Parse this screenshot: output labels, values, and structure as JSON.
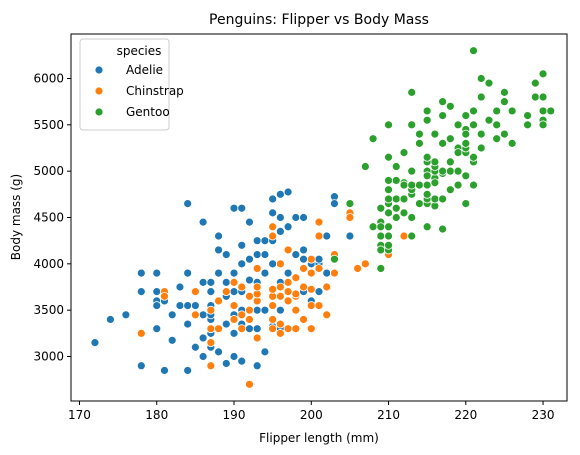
{
  "chart_data": {
    "type": "scatter",
    "title": "Penguins: Flipper vs Body Mass",
    "xlabel": "Flipper length (mm)",
    "ylabel": "Body mass (g)",
    "xlim": [
      168.9,
      233.1
    ],
    "ylim": [
      2520,
      6480
    ],
    "x_ticks": [
      170,
      180,
      190,
      200,
      210,
      220,
      230
    ],
    "y_ticks": [
      3000,
      3500,
      4000,
      4500,
      5000,
      5500,
      6000
    ],
    "grid": false,
    "legend": {
      "title": "species",
      "placement": "top-left"
    },
    "series": [
      {
        "name": "Adelie",
        "color": "#1f77b4",
        "points": [
          [
            172,
            3150
          ],
          [
            174,
            3400
          ],
          [
            176,
            3450
          ],
          [
            178,
            2900
          ],
          [
            178,
            3900
          ],
          [
            178,
            3700
          ],
          [
            180,
            3600
          ],
          [
            180,
            3550
          ],
          [
            180,
            3900
          ],
          [
            180,
            3700
          ],
          [
            180,
            3300
          ],
          [
            181,
            2850
          ],
          [
            181,
            3600
          ],
          [
            182,
            3175
          ],
          [
            182,
            3450
          ],
          [
            183,
            3550
          ],
          [
            183,
            3750
          ],
          [
            184,
            2850
          ],
          [
            184,
            3550
          ],
          [
            184,
            3350
          ],
          [
            184,
            4650
          ],
          [
            184,
            3900
          ],
          [
            185,
            3100
          ],
          [
            185,
            3700
          ],
          [
            185,
            3550
          ],
          [
            186,
            3000
          ],
          [
            186,
            3800
          ],
          [
            186,
            4450
          ],
          [
            186,
            3450
          ],
          [
            186,
            3200
          ],
          [
            187,
            2900
          ],
          [
            187,
            3100
          ],
          [
            187,
            3400
          ],
          [
            187,
            3800
          ],
          [
            187,
            3550
          ],
          [
            187,
            3450
          ],
          [
            187,
            3700
          ],
          [
            187,
            3250
          ],
          [
            188,
            3050
          ],
          [
            188,
            3300
          ],
          [
            188,
            3600
          ],
          [
            188,
            3900
          ],
          [
            188,
            4300
          ],
          [
            188,
            4150
          ],
          [
            189,
            2925
          ],
          [
            189,
            3350
          ],
          [
            189,
            3650
          ],
          [
            189,
            4100
          ],
          [
            189,
            3800
          ],
          [
            190,
            3000
          ],
          [
            190,
            3250
          ],
          [
            190,
            3450
          ],
          [
            190,
            3700
          ],
          [
            190,
            3900
          ],
          [
            190,
            4600
          ],
          [
            190,
            3550
          ],
          [
            191,
            2950
          ],
          [
            191,
            3350
          ],
          [
            191,
            3700
          ],
          [
            191,
            4000
          ],
          [
            191,
            4200
          ],
          [
            191,
            4600
          ],
          [
            191,
            3500
          ],
          [
            192,
            3300
          ],
          [
            192,
            3650
          ],
          [
            192,
            3825
          ],
          [
            192,
            4450
          ],
          [
            192,
            4050
          ],
          [
            193,
            2900
          ],
          [
            193,
            3300
          ],
          [
            193,
            3500
          ],
          [
            193,
            3800
          ],
          [
            193,
            4100
          ],
          [
            193,
            4250
          ],
          [
            194,
            3050
          ],
          [
            194,
            3500
          ],
          [
            194,
            3900
          ],
          [
            194,
            4250
          ],
          [
            194,
            4100
          ],
          [
            195,
            3325
          ],
          [
            195,
            3550
          ],
          [
            195,
            4000
          ],
          [
            195,
            4250
          ],
          [
            195,
            4550
          ],
          [
            195,
            4700
          ],
          [
            196,
            3300
          ],
          [
            196,
            3500
          ],
          [
            196,
            3800
          ],
          [
            196,
            4000
          ],
          [
            196,
            4350
          ],
          [
            196,
            4500
          ],
          [
            196,
            4750
          ],
          [
            197,
            3300
          ],
          [
            197,
            4400
          ],
          [
            197,
            4775
          ],
          [
            197,
            3900
          ],
          [
            198,
            3500
          ],
          [
            198,
            4100
          ],
          [
            198,
            4500
          ],
          [
            199,
            3700
          ],
          [
            199,
            4050
          ],
          [
            199,
            4150
          ],
          [
            199,
            4500
          ],
          [
            200,
            3600
          ],
          [
            200,
            3900
          ],
          [
            200,
            4000
          ],
          [
            201,
            3700
          ],
          [
            201,
            4000
          ],
          [
            201,
            4050
          ],
          [
            202,
            4300
          ],
          [
            202,
            3900
          ],
          [
            203,
            4725
          ],
          [
            203,
            4650
          ],
          [
            205,
            4300
          ]
        ]
      },
      {
        "name": "Chinstrap",
        "color": "#ff7f0e",
        "points": [
          [
            178,
            3250
          ],
          [
            181,
            3700
          ],
          [
            181,
            3650
          ],
          [
            185,
            3700
          ],
          [
            185,
            3450
          ],
          [
            187,
            2900
          ],
          [
            187,
            3500
          ],
          [
            187,
            3300
          ],
          [
            187,
            3150
          ],
          [
            188,
            3300
          ],
          [
            188,
            3600
          ],
          [
            189,
            3700
          ],
          [
            190,
            3550
          ],
          [
            190,
            3800
          ],
          [
            190,
            3400
          ],
          [
            191,
            3300
          ],
          [
            191,
            3450
          ],
          [
            191,
            3750
          ],
          [
            192,
            3500
          ],
          [
            192,
            3650
          ],
          [
            192,
            2700
          ],
          [
            192,
            3400
          ],
          [
            193,
            3600
          ],
          [
            193,
            3675
          ],
          [
            193,
            3950
          ],
          [
            193,
            3200
          ],
          [
            193,
            3750
          ],
          [
            195,
            3650
          ],
          [
            195,
            3300
          ],
          [
            195,
            3400
          ],
          [
            195,
            3550
          ],
          [
            195,
            3725
          ],
          [
            195,
            4400
          ],
          [
            195,
            4300
          ],
          [
            196,
            3350
          ],
          [
            196,
            3650
          ],
          [
            196,
            3750
          ],
          [
            196,
            4000
          ],
          [
            196,
            3250
          ],
          [
            197,
            3300
          ],
          [
            197,
            3700
          ],
          [
            197,
            3600
          ],
          [
            197,
            3800
          ],
          [
            197,
            4150
          ],
          [
            198,
            3650
          ],
          [
            198,
            3500
          ],
          [
            198,
            3850
          ],
          [
            198,
            3675
          ],
          [
            198,
            3300
          ],
          [
            199,
            3400
          ],
          [
            199,
            3750
          ],
          [
            199,
            3950
          ],
          [
            200,
            3300
          ],
          [
            200,
            3550
          ],
          [
            200,
            3900
          ],
          [
            200,
            4050
          ],
          [
            200,
            3725
          ],
          [
            201,
            3550
          ],
          [
            201,
            3950
          ],
          [
            201,
            4300
          ],
          [
            201,
            4450
          ],
          [
            202,
            3450
          ],
          [
            202,
            3750
          ],
          [
            203,
            3900
          ],
          [
            203,
            4100
          ],
          [
            205,
            4550
          ],
          [
            205,
            4500
          ],
          [
            206,
            3950
          ],
          [
            207,
            4000
          ],
          [
            210,
            4100
          ],
          [
            212,
            4300
          ]
        ]
      },
      {
        "name": "Gentoo",
        "color": "#2ca02c",
        "points": [
          [
            203,
            4050
          ],
          [
            205,
            4650
          ],
          [
            207,
            5050
          ],
          [
            208,
            4400
          ],
          [
            208,
            5350
          ],
          [
            209,
            3950
          ],
          [
            209,
            4150
          ],
          [
            209,
            4300
          ],
          [
            209,
            4600
          ],
          [
            209,
            4200
          ],
          [
            209,
            4450
          ],
          [
            209,
            4150
          ],
          [
            209,
            4400
          ],
          [
            210,
            4150
          ],
          [
            210,
            4300
          ],
          [
            210,
            4400
          ],
          [
            210,
            4550
          ],
          [
            210,
            4650
          ],
          [
            210,
            4800
          ],
          [
            210,
            4900
          ],
          [
            210,
            5150
          ],
          [
            210,
            5500
          ],
          [
            210,
            4200
          ],
          [
            210,
            4700
          ],
          [
            211,
            4500
          ],
          [
            211,
            4600
          ],
          [
            211,
            4900
          ],
          [
            211,
            5050
          ],
          [
            211,
            4700
          ],
          [
            212,
            4550
          ],
          [
            212,
            4875
          ],
          [
            212,
            5200
          ],
          [
            212,
            4700
          ],
          [
            212,
            4850
          ],
          [
            213,
            4500
          ],
          [
            213,
            4750
          ],
          [
            213,
            5000
          ],
          [
            213,
            5500
          ],
          [
            213,
            4300
          ],
          [
            213,
            4800
          ],
          [
            213,
            4850
          ],
          [
            213,
            5850
          ],
          [
            214,
            4650
          ],
          [
            214,
            4850
          ],
          [
            214,
            5400
          ],
          [
            214,
            5300
          ],
          [
            215,
            4400
          ],
          [
            215,
            4650
          ],
          [
            215,
            4700
          ],
          [
            215,
            4850
          ],
          [
            215,
            5000
          ],
          [
            215,
            5100
          ],
          [
            215,
            5150
          ],
          [
            215,
            5650
          ],
          [
            215,
            5550
          ],
          [
            215,
            4950
          ],
          [
            215,
            4750
          ],
          [
            216,
            4625
          ],
          [
            216,
            4925
          ],
          [
            216,
            5000
          ],
          [
            216,
            5050
          ],
          [
            216,
            5100
          ],
          [
            216,
            5400
          ],
          [
            216,
            4875
          ],
          [
            216,
            4700
          ],
          [
            217,
            4375
          ],
          [
            217,
            4700
          ],
          [
            217,
            4975
          ],
          [
            217,
            5300
          ],
          [
            217,
            5600
          ],
          [
            217,
            5750
          ],
          [
            217,
            5000
          ],
          [
            218,
            4800
          ],
          [
            218,
            5100
          ],
          [
            218,
            5700
          ],
          [
            218,
            5350
          ],
          [
            218,
            5000
          ],
          [
            218,
            5350
          ],
          [
            219,
            4850
          ],
          [
            219,
            5000
          ],
          [
            219,
            5250
          ],
          [
            219,
            5500
          ],
          [
            219,
            5200
          ],
          [
            220,
            4650
          ],
          [
            220,
            4950
          ],
          [
            220,
            5200
          ],
          [
            220,
            5250
          ],
          [
            220,
            5450
          ],
          [
            220,
            5600
          ],
          [
            220,
            5300
          ],
          [
            220,
            5400
          ],
          [
            221,
            4850
          ],
          [
            221,
            5100
          ],
          [
            221,
            5500
          ],
          [
            221,
            5650
          ],
          [
            221,
            6300
          ],
          [
            221,
            5150
          ],
          [
            222,
            5250
          ],
          [
            222,
            5400
          ],
          [
            222,
            5800
          ],
          [
            222,
            6000
          ],
          [
            223,
            5550
          ],
          [
            223,
            5950
          ],
          [
            224,
            5350
          ],
          [
            224,
            5650
          ],
          [
            224,
            5500
          ],
          [
            225,
            5400
          ],
          [
            225,
            5750
          ],
          [
            225,
            5850
          ],
          [
            226,
            5650
          ],
          [
            226,
            5300
          ],
          [
            228,
            5600
          ],
          [
            228,
            5500
          ],
          [
            229,
            5800
          ],
          [
            229,
            5950
          ],
          [
            230,
            5650
          ],
          [
            230,
            5550
          ],
          [
            230,
            5500
          ],
          [
            230,
            5800
          ],
          [
            230,
            6050
          ],
          [
            231,
            5650
          ]
        ]
      }
    ]
  }
}
